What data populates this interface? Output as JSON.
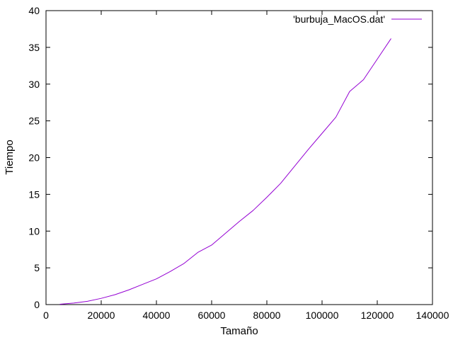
{
  "chart_data": {
    "type": "line",
    "title": "",
    "xlabel": "Tamaño",
    "ylabel": "Tiempo",
    "xlim": [
      0,
      140000
    ],
    "ylim": [
      0,
      40
    ],
    "x_ticks": [
      0,
      20000,
      40000,
      60000,
      80000,
      100000,
      120000,
      140000
    ],
    "y_ticks": [
      0,
      5,
      10,
      15,
      20,
      25,
      30,
      35,
      40
    ],
    "grid": false,
    "legend_position": "top-right",
    "series": [
      {
        "name": "'burbuja_MacOS.dat'",
        "color": "#9400d3",
        "x": [
          5000,
          10000,
          15000,
          20000,
          25000,
          30000,
          35000,
          40000,
          45000,
          50000,
          55000,
          60000,
          65000,
          70000,
          75000,
          80000,
          85000,
          90000,
          95000,
          100000,
          105000,
          110000,
          115000,
          120000,
          125000
        ],
        "y": [
          0.05,
          0.2,
          0.45,
          0.85,
          1.35,
          2.0,
          2.75,
          3.5,
          4.5,
          5.6,
          7.1,
          8.1,
          9.7,
          11.3,
          12.8,
          14.6,
          16.5,
          18.8,
          21.1,
          23.3,
          25.5,
          29.0,
          30.6,
          33.4,
          36.2
        ]
      }
    ]
  }
}
